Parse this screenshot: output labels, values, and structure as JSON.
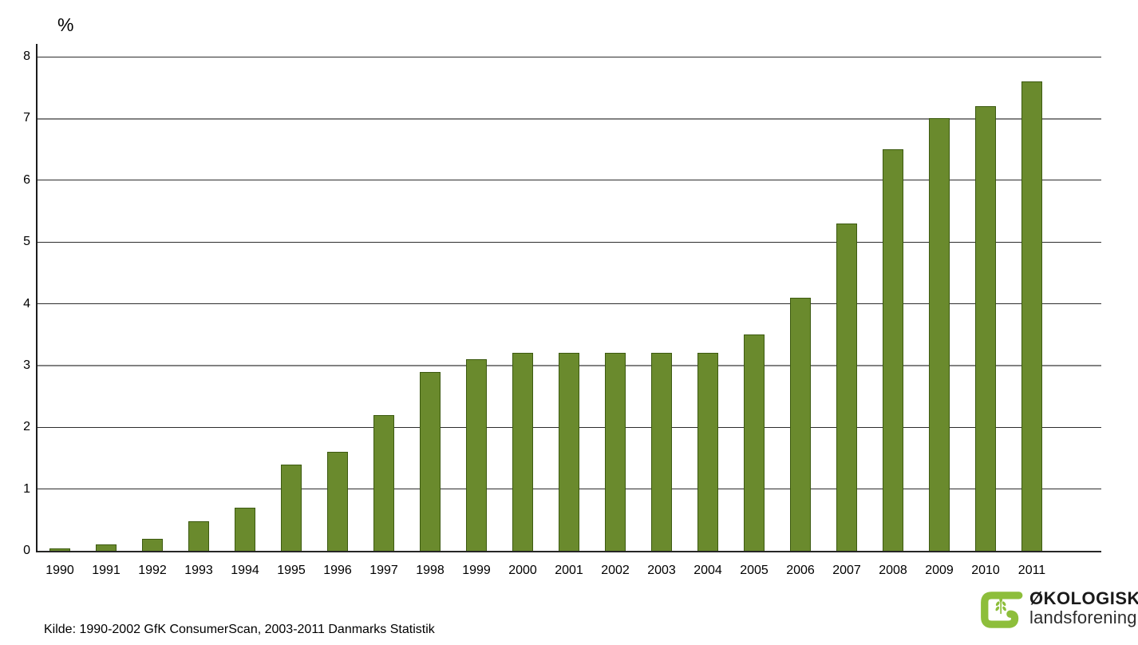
{
  "chart": {
    "unit": "%"
  },
  "chart_data": {
    "type": "bar",
    "title": "",
    "ylabel": "%",
    "xlabel": "",
    "categories": [
      "1990",
      "1991",
      "1992",
      "1993",
      "1994",
      "1995",
      "1996",
      "1997",
      "1998",
      "1999",
      "2000",
      "2001",
      "2002",
      "2003",
      "2004",
      "2005",
      "2006",
      "2007",
      "2008",
      "2009",
      "2010",
      "2011"
    ],
    "values": [
      0.04,
      0.1,
      0.2,
      0.48,
      0.7,
      1.4,
      1.6,
      2.2,
      2.9,
      3.1,
      3.2,
      3.2,
      3.2,
      3.2,
      3.2,
      3.5,
      4.1,
      5.3,
      6.5,
      7.0,
      7.2,
      7.6
    ],
    "ylim": [
      0,
      8
    ],
    "ytick_step": 1,
    "grid": true,
    "legend": "none",
    "bar_color": "#6a8a2d",
    "bar_border_color": "#3c5a10",
    "gridline_color": "#2d2d2d",
    "gray_gridlines_at": [
      3,
      7
    ]
  },
  "footer": {
    "source": "Kilde: 1990-2002 GfK ConsumerScan, 2003-2011 Danmarks Statistik",
    "logo_line1": "ØKOLOGISK",
    "logo_line2": "landsforening",
    "logo_color": "#8dbe3b"
  }
}
